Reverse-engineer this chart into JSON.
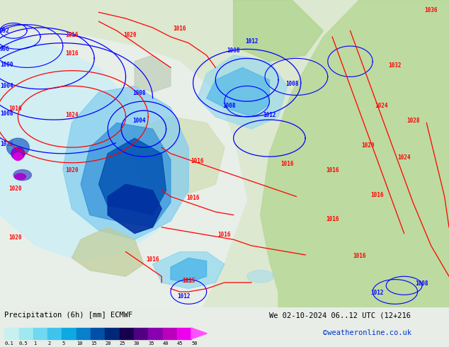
{
  "title_left": "Precipitation (6h) [mm] ECMWF",
  "title_right": "We 02-10-2024 06..12 UTC (12+216",
  "credit": "©weatheronline.co.uk",
  "colorbar_colors": [
    "#c8f0f0",
    "#a0e8f0",
    "#70d8f0",
    "#40c4ee",
    "#10a8e0",
    "#0880cc",
    "#0050a8",
    "#002878",
    "#180050",
    "#500080",
    "#8800b0",
    "#bb00bb",
    "#ee00ee",
    "#ff50ff"
  ],
  "colorbar_labels": [
    "0.1",
    "0.5",
    "1",
    "2",
    "5",
    "10",
    "15",
    "20",
    "25",
    "30",
    "35",
    "40",
    "45",
    "50"
  ],
  "bg_color": "#e8ede8",
  "fig_width": 6.34,
  "fig_height": 4.9,
  "dpi": 100,
  "land_color": "#c8d8a0",
  "ocean_light": "#d0eef8",
  "ocean_mid": "#b0dff0",
  "prec_light": "#c0eef8",
  "prec_med": "#70c8f0",
  "prec_dark": "#2080d0",
  "prec_vdark": "#0040a0",
  "prec_intense": "#8800cc",
  "prec_extreme": "#dd00dd"
}
